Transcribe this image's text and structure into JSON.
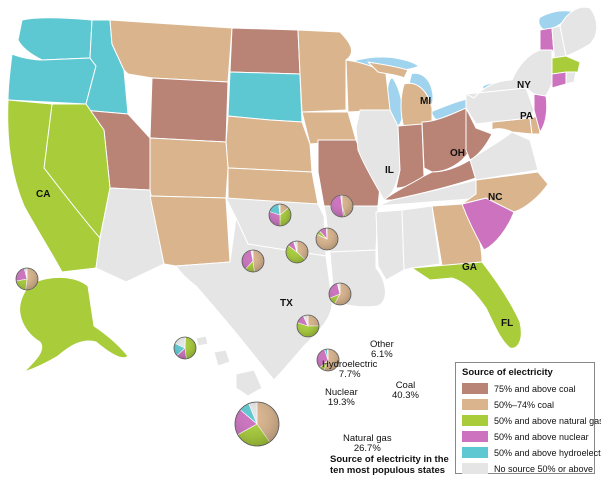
{
  "colors": {
    "coal75": "#b98376",
    "coal50": "#d9b48d",
    "gas": "#a8cc3a",
    "nuclear": "#cc72bf",
    "hydro": "#5ec8d2",
    "none": "#e5e5e5",
    "water": "#9fd3ee",
    "border": "#ffffff",
    "nation_border": "#aaaaaa"
  },
  "state_labels": [
    {
      "id": "ca",
      "text": "CA"
    },
    {
      "id": "tx",
      "text": "TX"
    },
    {
      "id": "il",
      "text": "IL"
    },
    {
      "id": "mi",
      "text": "MI"
    },
    {
      "id": "oh",
      "text": "OH"
    },
    {
      "id": "pa",
      "text": "PA"
    },
    {
      "id": "ny",
      "text": "NY"
    },
    {
      "id": "nc",
      "text": "NC"
    },
    {
      "id": "ga",
      "text": "GA"
    },
    {
      "id": "fl",
      "text": "FL"
    }
  ],
  "legend": {
    "title": "Source of electricity",
    "items": [
      {
        "label": "75% and above coal",
        "color": "#b98376"
      },
      {
        "label": "50%–74% coal",
        "color": "#d9b48d"
      },
      {
        "label": "50% and above natural gas",
        "color": "#a8cc3a"
      },
      {
        "label": "50% and above nuclear",
        "color": "#cc72bf"
      },
      {
        "label": "50% and above hydroelectric",
        "color": "#5ec8d2"
      },
      {
        "label": "No source 50% or above",
        "color": "#e5e5e5"
      }
    ]
  },
  "summary_chart": {
    "caption": "Source of electricity in the ten most populous states",
    "slices": [
      {
        "label_name": "Coal",
        "label_value": "40.3%",
        "value": 40.3,
        "color": "#d9b48d"
      },
      {
        "label_name": "Natural gas",
        "label_value": "26.7%",
        "value": 26.7,
        "color": "#a8cc3a"
      },
      {
        "label_name": "Nuclear",
        "label_value": "19.3%",
        "value": 19.3,
        "color": "#cc72bf"
      },
      {
        "label_name": "Hydroelectric",
        "label_value": "7.7%",
        "value": 7.7,
        "color": "#5ec8d2"
      },
      {
        "label_name": "Other",
        "label_value": "6.1%",
        "value": 6.1,
        "color": "#e5e5e5"
      }
    ]
  },
  "state_pies": [
    {
      "state": "CA",
      "shares": [
        1,
        47,
        15,
        19,
        18
      ]
    },
    {
      "state": "TX",
      "shares": [
        37,
        48,
        10,
        1,
        4
      ]
    },
    {
      "state": "FL",
      "shares": [
        25,
        55,
        13,
        0,
        7
      ]
    },
    {
      "state": "NY",
      "shares": [
        14,
        36,
        30,
        18,
        2
      ]
    },
    {
      "state": "IL",
      "shares": [
        45,
        3,
        50,
        0,
        2
      ]
    },
    {
      "state": "PA",
      "shares": [
        48,
        14,
        35,
        1,
        2
      ]
    },
    {
      "state": "OH",
      "shares": [
        82,
        6,
        11,
        0,
        1
      ]
    },
    {
      "state": "MI",
      "shares": [
        58,
        11,
        27,
        1,
        3
      ]
    },
    {
      "state": "GA",
      "shares": [
        52,
        20,
        24,
        2,
        2
      ]
    },
    {
      "state": "NC",
      "shares": [
        56,
        7,
        32,
        4,
        1
      ]
    }
  ]
}
